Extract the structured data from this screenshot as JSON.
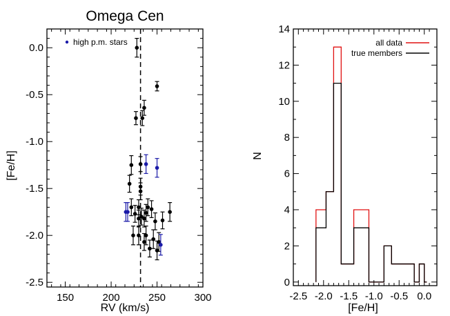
{
  "chart_data": [
    {
      "type": "scatter",
      "title": "Omega Cen",
      "xlabel": "RV (km/s)",
      "ylabel": "[Fe/H]",
      "xlim": [
        130,
        300
      ],
      "ylim": [
        -2.55,
        0.2
      ],
      "xticks": [
        150,
        200,
        250,
        300
      ],
      "yticks": [
        0.0,
        -0.5,
        -1.0,
        -1.5,
        -2.0,
        -2.5
      ],
      "ytick_labels": [
        "0.0",
        "-0.5",
        "-1.0",
        "-1.5",
        "-2.0",
        "-2.5"
      ],
      "vline": {
        "x": 232,
        "style": "dashed"
      },
      "legend": {
        "position": "top-left",
        "entries": [
          {
            "label": "high p.m. stars",
            "color": "#1a1aa8"
          }
        ]
      },
      "series": [
        {
          "color": "#000000",
          "points": [
            {
              "x": 228,
              "y": 0.0,
              "err": 0.1
            },
            {
              "x": 250,
              "y": -0.41,
              "err": 0.05
            },
            {
              "x": 236,
              "y": -0.64,
              "err": 0.08
            },
            {
              "x": 227,
              "y": -0.75,
              "err": 0.07
            },
            {
              "x": 234,
              "y": -0.75,
              "err": 0.08
            },
            {
              "x": 222,
              "y": -1.25,
              "err": 0.1
            },
            {
              "x": 232,
              "y": -1.24,
              "err": 0.08
            },
            {
              "x": 220,
              "y": -1.45,
              "err": 0.09
            },
            {
              "x": 232,
              "y": -1.48,
              "err": 0.09
            },
            {
              "x": 232,
              "y": -1.53,
              "err": 0.09
            },
            {
              "x": 222,
              "y": -1.7,
              "err": 0.09
            },
            {
              "x": 230,
              "y": -1.7,
              "err": 0.08
            },
            {
              "x": 240,
              "y": -1.7,
              "err": 0.09
            },
            {
              "x": 226,
              "y": -1.77,
              "err": 0.09
            },
            {
              "x": 233,
              "y": -1.8,
              "err": 0.09
            },
            {
              "x": 238,
              "y": -1.76,
              "err": 0.09
            },
            {
              "x": 244,
              "y": -1.72,
              "err": 0.09
            },
            {
              "x": 264,
              "y": -1.75,
              "err": 0.1
            },
            {
              "x": 230,
              "y": -1.82,
              "err": 0.09
            },
            {
              "x": 236,
              "y": -1.82,
              "err": 0.09
            },
            {
              "x": 248,
              "y": -1.85,
              "err": 0.09
            },
            {
              "x": 256,
              "y": -1.84,
              "err": 0.09
            },
            {
              "x": 224,
              "y": -2.0,
              "err": 0.1
            },
            {
              "x": 230,
              "y": -2.0,
              "err": 0.1
            },
            {
              "x": 238,
              "y": -2.0,
              "err": 0.1
            },
            {
              "x": 236,
              "y": -2.07,
              "err": 0.09
            },
            {
              "x": 246,
              "y": -2.04,
              "err": 0.1
            },
            {
              "x": 252,
              "y": -2.07,
              "err": 0.1
            },
            {
              "x": 242,
              "y": -2.14,
              "err": 0.09
            },
            {
              "x": 250,
              "y": -2.16,
              "err": 0.1
            }
          ]
        },
        {
          "color": "#1a1aa8",
          "points": [
            {
              "x": 216,
              "y": -1.75,
              "err": 0.1
            },
            {
              "x": 218,
              "y": -1.75,
              "err": 0.1
            },
            {
              "x": 238,
              "y": -1.24,
              "err": 0.1
            },
            {
              "x": 250,
              "y": -1.28,
              "err": 0.1
            },
            {
              "x": 254,
              "y": -2.1,
              "err": 0.11
            }
          ]
        }
      ]
    },
    {
      "type": "histogram",
      "title": "",
      "xlabel": "[Fe/H]",
      "ylabel": "N",
      "xlim": [
        -2.6,
        0.25
      ],
      "ylim": [
        -0.2,
        14
      ],
      "xticks": [
        -2.5,
        -2.0,
        -1.5,
        -1.0,
        -0.5,
        0.0
      ],
      "xtick_labels": [
        "-2.5",
        "-2.0",
        "-1.5",
        "-1.0",
        "-0.5",
        "0.0"
      ],
      "yticks": [
        0,
        2,
        4,
        6,
        8,
        10,
        12,
        14
      ],
      "legend": {
        "position": "top-right"
      },
      "series": [
        {
          "name": "all data",
          "color": "#e01010",
          "bin_edges": [
            -2.15,
            -2.05,
            -1.95,
            -1.8,
            -1.65,
            -1.55,
            -1.4,
            -1.25,
            -1.1,
            -0.95,
            -0.8,
            -0.65,
            -0.5,
            -0.35,
            -0.2,
            -0.1,
            0.0,
            0.05
          ],
          "counts": [
            4,
            4,
            5,
            13,
            1,
            1,
            4,
            4,
            0,
            0,
            2,
            1,
            1,
            1,
            0,
            1,
            0
          ]
        },
        {
          "name": "true members",
          "color": "#000000",
          "bin_edges": [
            -2.15,
            -2.05,
            -1.95,
            -1.8,
            -1.65,
            -1.55,
            -1.4,
            -1.25,
            -1.1,
            -0.95,
            -0.8,
            -0.65,
            -0.5,
            -0.35,
            -0.2,
            -0.1,
            0.0,
            0.05
          ],
          "counts": [
            3,
            3,
            5,
            11,
            1,
            1,
            3,
            3,
            0,
            0,
            2,
            1,
            1,
            1,
            0,
            1,
            0
          ]
        }
      ]
    }
  ]
}
